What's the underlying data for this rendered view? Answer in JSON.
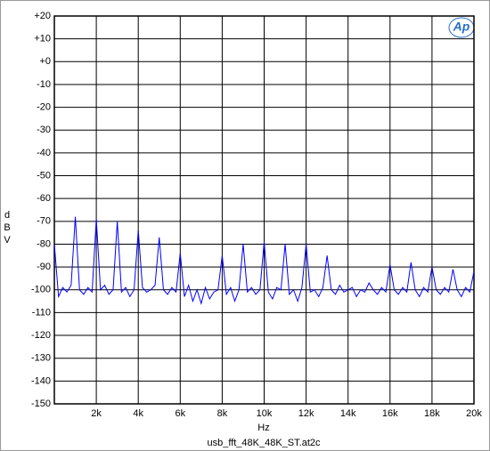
{
  "chart_data": {
    "type": "line",
    "logo": "Ap",
    "y_label": "dBV",
    "x_label": "Hz",
    "caption": "usb_fft_48K_48K_ST.at2c",
    "xlim": [
      0,
      20000
    ],
    "ylim": [
      -150,
      20
    ],
    "xticks": [
      {
        "value": 2000,
        "label": "2k"
      },
      {
        "value": 4000,
        "label": "4k"
      },
      {
        "value": 6000,
        "label": "6k"
      },
      {
        "value": 8000,
        "label": "8k"
      },
      {
        "value": 10000,
        "label": "10k"
      },
      {
        "value": 12000,
        "label": "12k"
      },
      {
        "value": 14000,
        "label": "14k"
      },
      {
        "value": 16000,
        "label": "16k"
      },
      {
        "value": 18000,
        "label": "18k"
      },
      {
        "value": 20000,
        "label": "20k"
      }
    ],
    "yticks": [
      {
        "value": 20,
        "label": "+20"
      },
      {
        "value": 10,
        "label": "+10"
      },
      {
        "value": 0,
        "label": "+0"
      },
      -10,
      -20,
      -30,
      -40,
      -50,
      -60,
      -70,
      -80,
      -90,
      -100,
      -110,
      -120,
      -130,
      -140,
      -150
    ],
    "grid": true,
    "x": [
      0,
      200,
      400,
      600,
      800,
      1000,
      1200,
      1400,
      1600,
      1800,
      2000,
      2200,
      2400,
      2600,
      2800,
      3000,
      3200,
      3400,
      3600,
      3800,
      4000,
      4200,
      4400,
      4600,
      4800,
      5000,
      5200,
      5400,
      5600,
      5800,
      6000,
      6200,
      6400,
      6600,
      6800,
      7000,
      7200,
      7400,
      7600,
      7800,
      8000,
      8200,
      8400,
      8600,
      8800,
      9000,
      9200,
      9400,
      9600,
      9800,
      10000,
      10200,
      10400,
      10600,
      10800,
      11000,
      11200,
      11400,
      11600,
      11800,
      12000,
      12200,
      12400,
      12600,
      12800,
      13000,
      13200,
      13400,
      13600,
      13800,
      14000,
      14200,
      14400,
      14600,
      14800,
      15000,
      15200,
      15400,
      15600,
      15800,
      16000,
      16200,
      16400,
      16600,
      16800,
      17000,
      17200,
      17400,
      17600,
      17800,
      18000,
      18200,
      18400,
      18600,
      18800,
      19000,
      19200,
      19400,
      19600,
      19800,
      20000
    ],
    "series": [
      {
        "color": "#0000ff",
        "values": [
          -80,
          -103,
          -99,
          -101,
          -98,
          -68,
          -100,
          -102,
          -99,
          -101,
          -69,
          -100,
          -98,
          -102,
          -100,
          -70,
          -101,
          -99,
          -103,
          -100,
          -74,
          -99,
          -101,
          -100,
          -98,
          -77,
          -100,
          -102,
          -99,
          -101,
          -84,
          -103,
          -98,
          -105,
          -100,
          -106,
          -99,
          -104,
          -101,
          -100,
          -85,
          -102,
          -99,
          -105,
          -100,
          -80,
          -101,
          -99,
          -102,
          -100,
          -79,
          -101,
          -104,
          -99,
          -100,
          -80,
          -102,
          -100,
          -105,
          -99,
          -80,
          -101,
          -100,
          -103,
          -99,
          -85,
          -100,
          -102,
          -98,
          -101,
          -100,
          -99,
          -103,
          -100,
          -101,
          -97,
          -100,
          -102,
          -99,
          -101,
          -89,
          -100,
          -102,
          -99,
          -101,
          -88,
          -100,
          -103,
          -99,
          -101,
          -90,
          -100,
          -102,
          -99,
          -101,
          -91,
          -100,
          -103,
          -99,
          -101,
          -92
        ]
      }
    ]
  }
}
